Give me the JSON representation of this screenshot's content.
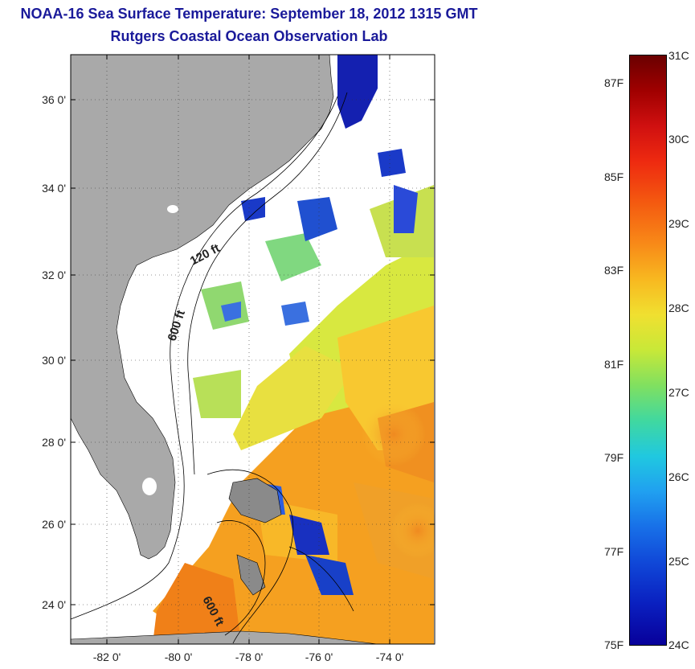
{
  "header": {
    "title": "NOAA-16 Sea Surface Temperature:  September 18, 2012 1315 GMT",
    "subtitle": "Rutgers Coastal Ocean Observation Lab"
  },
  "map": {
    "lat_labels": [
      "24 0'",
      "26 0'",
      "28 0'",
      "30 0'",
      "32 0'",
      "34 0'",
      "36 0'"
    ],
    "lon_labels": [
      "-82 0'",
      "-80 0'",
      "-78 0'",
      "-76 0'",
      "-74 0'"
    ],
    "contour_labels": [
      "120 ft",
      "600 ft",
      "600 ft"
    ],
    "colors": {
      "land": "#a9a9a9",
      "cloud_no_data": "#ffffff"
    }
  },
  "colorbar": {
    "celsius_labels": [
      "31C",
      "30C",
      "29C",
      "28C",
      "27C",
      "26C",
      "25C",
      "24C"
    ],
    "fahrenheit_labels": [
      "87F",
      "85F",
      "83F",
      "81F",
      "79F",
      "77F",
      "75F"
    ],
    "range_celsius": [
      24,
      31
    ],
    "palette": "jet"
  }
}
